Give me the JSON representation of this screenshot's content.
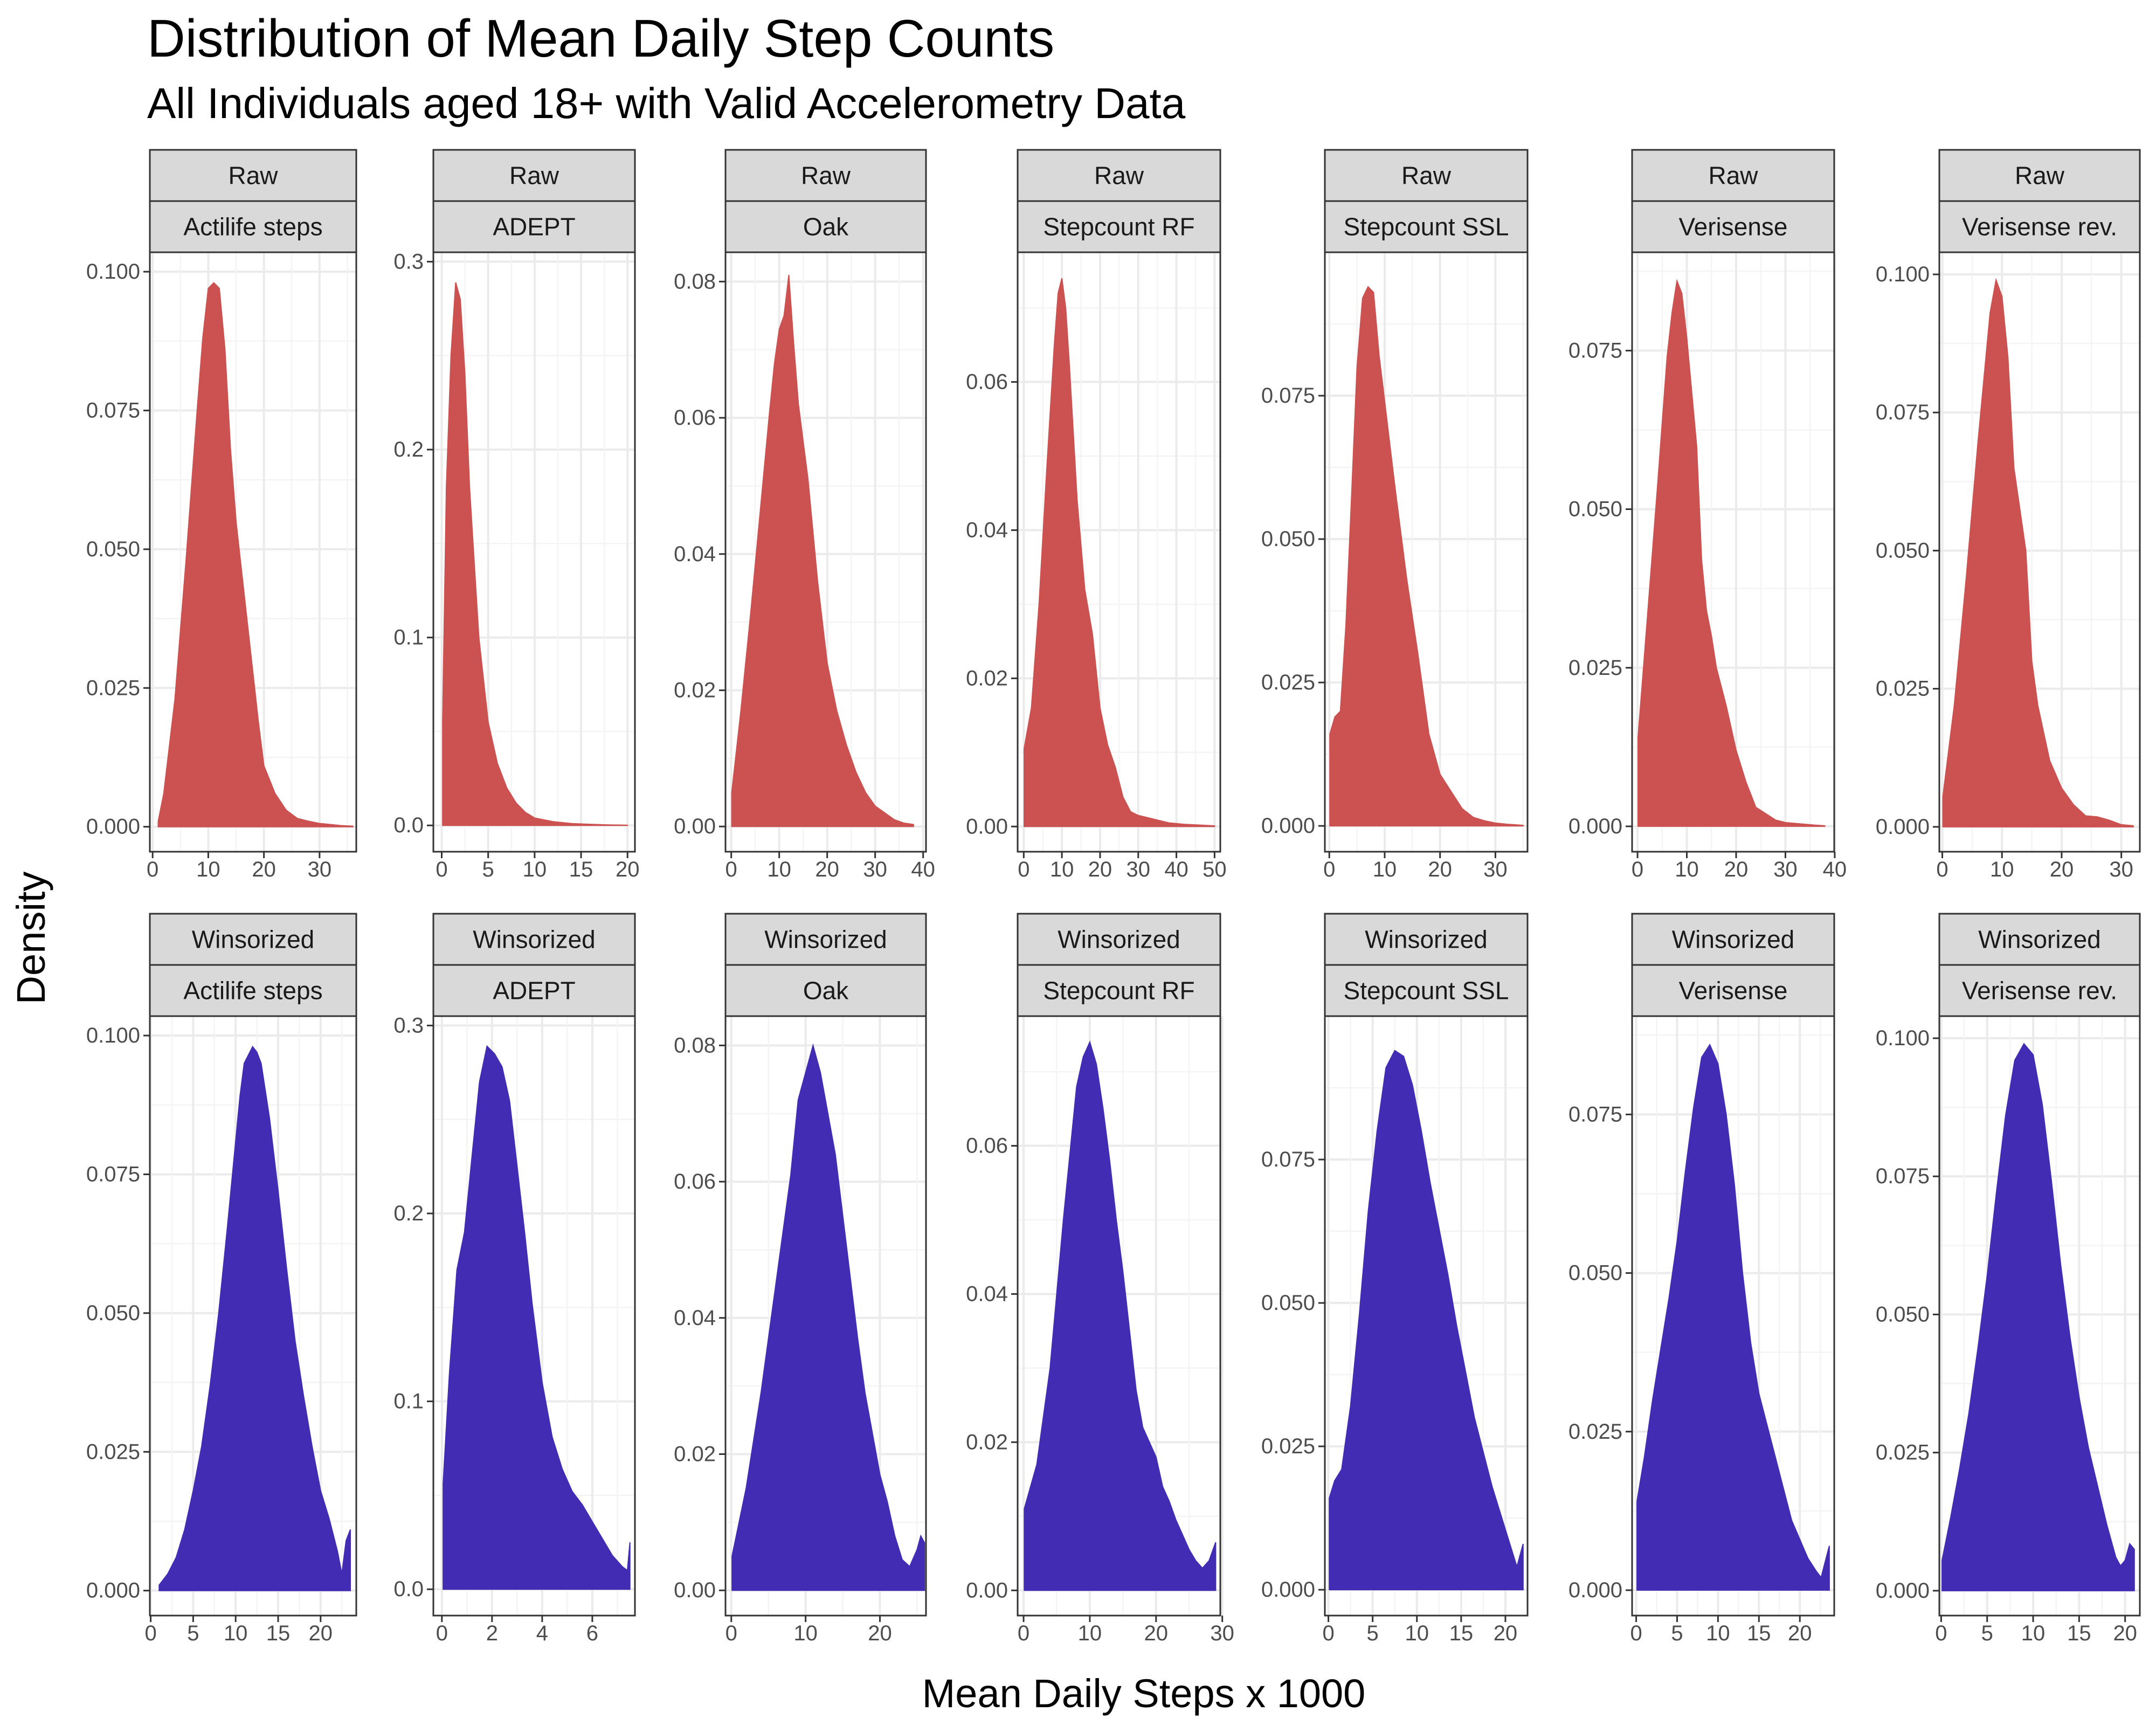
{
  "title": "Distribution of Mean Daily Step Counts",
  "subtitle": "All Individuals aged 18+ with Valid Accelerometry Data",
  "ylabel": "Density",
  "xlabel": "Mean Daily Steps x 1000",
  "colors": {
    "raw": "#cc5151",
    "winsorized": "#422cb3"
  },
  "chart_data": {
    "type": "area",
    "facet_rows": [
      "Raw",
      "Winsorized"
    ],
    "facet_cols": [
      "Actilife steps",
      "ADEPT",
      "Oak",
      "Stepcount RF",
      "Stepcount SSL",
      "Verisense",
      "Verisense rev."
    ],
    "panels": [
      {
        "row": "Raw",
        "method": "Actilife steps",
        "color_key": "raw",
        "xlim": [
          -0.5,
          36.6
        ],
        "xticks": [
          0,
          10,
          20,
          30
        ],
        "ylim": [
          -0.0045,
          0.1035
        ],
        "yticks": [
          "0.000",
          "0.025",
          "0.050",
          "0.075",
          "0.100"
        ],
        "x": [
          1,
          2,
          4,
          6,
          8,
          9,
          10,
          11,
          12,
          13,
          14,
          15,
          16,
          18,
          19,
          20,
          22,
          24,
          26,
          28,
          30,
          32,
          34,
          36
        ],
        "y": [
          0.001,
          0.006,
          0.023,
          0.048,
          0.075,
          0.088,
          0.097,
          0.098,
          0.097,
          0.086,
          0.068,
          0.055,
          0.046,
          0.028,
          0.019,
          0.011,
          0.006,
          0.003,
          0.0015,
          0.001,
          0.0006,
          0.0004,
          0.0002,
          0.0001
        ]
      },
      {
        "row": "Raw",
        "method": "ADEPT",
        "color_key": "raw",
        "xlim": [
          -0.9,
          20.8
        ],
        "xticks": [
          0,
          5,
          10,
          15,
          20
        ],
        "ylim": [
          -0.014,
          0.305
        ],
        "yticks": [
          "0.0",
          "0.1",
          "0.2",
          "0.3"
        ],
        "x": [
          0.1,
          0.5,
          1,
          1.5,
          2,
          2.5,
          3,
          3.5,
          4,
          5,
          6,
          7,
          8,
          9,
          10,
          12,
          14,
          16,
          18,
          20
        ],
        "y": [
          0.056,
          0.18,
          0.25,
          0.289,
          0.28,
          0.24,
          0.18,
          0.14,
          0.1,
          0.055,
          0.033,
          0.02,
          0.012,
          0.007,
          0.004,
          0.002,
          0.001,
          0.0006,
          0.0003,
          0.0001
        ]
      },
      {
        "row": "Raw",
        "method": "Oak",
        "color_key": "raw",
        "xlim": [
          -1.2,
          40.6
        ],
        "xticks": [
          0,
          10,
          20,
          30,
          40
        ],
        "ylim": [
          -0.0037,
          0.0843
        ],
        "yticks": [
          "0.00",
          "0.02",
          "0.04",
          "0.06",
          "0.08"
        ],
        "x": [
          0.1,
          2,
          4,
          6,
          8,
          9,
          10,
          11,
          12,
          13,
          14,
          16,
          18,
          20,
          22,
          24,
          26,
          28,
          30,
          32,
          34,
          36,
          38
        ],
        "y": [
          0.005,
          0.017,
          0.031,
          0.046,
          0.061,
          0.068,
          0.073,
          0.075,
          0.081,
          0.071,
          0.062,
          0.051,
          0.036,
          0.024,
          0.017,
          0.012,
          0.008,
          0.005,
          0.003,
          0.002,
          0.001,
          0.0005,
          0.0003
        ]
      },
      {
        "row": "Raw",
        "method": "Stepcount RF",
        "color_key": "raw",
        "xlim": [
          -1.6,
          51.5
        ],
        "xticks": [
          0,
          10,
          20,
          30,
          40,
          50
        ],
        "ylim": [
          -0.0034,
          0.0775
        ],
        "yticks": [
          "0.00",
          "0.02",
          "0.04",
          "0.06"
        ],
        "x": [
          0.1,
          2,
          4,
          6,
          8,
          9,
          10,
          11,
          12,
          14,
          16,
          18,
          20,
          22,
          24,
          26,
          28,
          30,
          34,
          38,
          42,
          46,
          50
        ],
        "y": [
          0.0105,
          0.016,
          0.03,
          0.048,
          0.065,
          0.072,
          0.074,
          0.07,
          0.062,
          0.044,
          0.032,
          0.026,
          0.016,
          0.011,
          0.008,
          0.004,
          0.002,
          0.0015,
          0.001,
          0.0005,
          0.0003,
          0.0002,
          0.0001
        ]
      },
      {
        "row": "Raw",
        "method": "Stepcount SSL",
        "color_key": "raw",
        "xlim": [
          -0.8,
          35.8
        ],
        "xticks": [
          0,
          10,
          20,
          30
        ],
        "ylim": [
          -0.0045,
          0.1
        ],
        "yticks": [
          "0.000",
          "0.025",
          "0.050",
          "0.075"
        ],
        "x": [
          0.1,
          1,
          2,
          3,
          4,
          5,
          6,
          7,
          8,
          9,
          10,
          11,
          12,
          14,
          16,
          18,
          20,
          22,
          24,
          26,
          28,
          30,
          32,
          35
        ],
        "y": [
          0.016,
          0.019,
          0.02,
          0.035,
          0.057,
          0.08,
          0.092,
          0.094,
          0.093,
          0.082,
          0.074,
          0.066,
          0.058,
          0.043,
          0.03,
          0.016,
          0.009,
          0.006,
          0.003,
          0.0015,
          0.0009,
          0.0005,
          0.0003,
          0.0001
        ]
      },
      {
        "row": "Raw",
        "method": "Verisense",
        "color_key": "raw",
        "xlim": [
          -1.1,
          39.9
        ],
        "xticks": [
          0,
          10,
          20,
          30,
          40
        ],
        "ylim": [
          -0.004,
          0.0905
        ],
        "yticks": [
          "0.000",
          "0.025",
          "0.050",
          "0.075"
        ],
        "x": [
          0.1,
          2,
          4,
          6,
          7,
          8,
          9,
          10,
          12,
          13,
          14,
          15,
          16,
          18,
          20,
          22,
          24,
          26,
          28,
          30,
          33,
          36,
          38
        ],
        "y": [
          0.014,
          0.033,
          0.053,
          0.074,
          0.081,
          0.086,
          0.084,
          0.077,
          0.06,
          0.042,
          0.034,
          0.03,
          0.025,
          0.019,
          0.012,
          0.007,
          0.003,
          0.002,
          0.001,
          0.0006,
          0.0004,
          0.0002,
          0.0001
        ]
      },
      {
        "row": "Raw",
        "method": "Verisense rev.",
        "color_key": "raw",
        "xlim": [
          -0.5,
          33.1
        ],
        "xticks": [
          0,
          10,
          20,
          30
        ],
        "ylim": [
          -0.0045,
          0.104
        ],
        "yticks": [
          "0.000",
          "0.025",
          "0.050",
          "0.075",
          "0.100"
        ],
        "x": [
          0.1,
          2,
          4,
          6,
          8,
          9,
          10,
          11,
          12,
          14,
          15,
          16,
          18,
          20,
          22,
          24,
          26,
          28,
          30,
          32
        ],
        "y": [
          0.0055,
          0.022,
          0.045,
          0.07,
          0.093,
          0.099,
          0.096,
          0.085,
          0.065,
          0.05,
          0.03,
          0.022,
          0.012,
          0.007,
          0.004,
          0.002,
          0.0018,
          0.0012,
          0.0004,
          0.0002
        ]
      },
      {
        "row": "Winsorized",
        "method": "Actilife steps",
        "color_key": "winsorized",
        "xlim": [
          -0.1,
          24.2
        ],
        "xticks": [
          0,
          5,
          10,
          15,
          20
        ],
        "ylim": [
          -0.0045,
          0.1035
        ],
        "yticks": [
          "0.000",
          "0.025",
          "0.050",
          "0.075",
          "0.100"
        ],
        "x": [
          1,
          2,
          3,
          4,
          5,
          6,
          7,
          8,
          9,
          10,
          10.5,
          11,
          12,
          12.5,
          13,
          14,
          15,
          16,
          17,
          18,
          19,
          20,
          21,
          22,
          22.5,
          23,
          23.5
        ],
        "y": [
          0.001,
          0.003,
          0.006,
          0.011,
          0.018,
          0.026,
          0.037,
          0.05,
          0.065,
          0.081,
          0.089,
          0.095,
          0.098,
          0.097,
          0.095,
          0.085,
          0.072,
          0.058,
          0.045,
          0.035,
          0.026,
          0.018,
          0.013,
          0.007,
          0.003,
          0.009,
          0.011
        ]
      },
      {
        "row": "Winsorized",
        "method": "ADEPT",
        "color_key": "winsorized",
        "xlim": [
          -0.34,
          7.7
        ],
        "xticks": [
          0,
          2,
          4,
          6
        ],
        "ylim": [
          -0.014,
          0.305
        ],
        "yticks": [
          "0.0",
          "0.1",
          "0.2",
          "0.3"
        ],
        "x": [
          0.05,
          0.3,
          0.6,
          0.9,
          1.2,
          1.5,
          1.8,
          2.1,
          2.4,
          2.7,
          3,
          3.3,
          3.6,
          4,
          4.4,
          4.8,
          5.2,
          5.6,
          6,
          6.4,
          6.8,
          7.2,
          7.4,
          7.5
        ],
        "y": [
          0.056,
          0.115,
          0.17,
          0.19,
          0.23,
          0.27,
          0.289,
          0.285,
          0.278,
          0.26,
          0.225,
          0.19,
          0.152,
          0.11,
          0.081,
          0.064,
          0.052,
          0.045,
          0.036,
          0.027,
          0.018,
          0.012,
          0.01,
          0.025
        ]
      },
      {
        "row": "Winsorized",
        "method": "Oak",
        "color_key": "winsorized",
        "xlim": [
          -0.78,
          26.2
        ],
        "xticks": [
          0,
          10,
          20
        ],
        "ylim": [
          -0.0037,
          0.0843
        ],
        "yticks": [
          "0.00",
          "0.02",
          "0.04",
          "0.06",
          "0.08"
        ],
        "x": [
          0.1,
          2,
          4,
          6,
          8,
          9,
          10,
          11,
          12,
          13,
          14,
          15,
          16,
          17,
          18,
          19,
          20,
          21,
          22,
          23,
          24,
          25,
          25.5,
          26
        ],
        "y": [
          0.005,
          0.015,
          0.029,
          0.045,
          0.061,
          0.072,
          0.076,
          0.08,
          0.076,
          0.07,
          0.064,
          0.055,
          0.046,
          0.037,
          0.029,
          0.023,
          0.017,
          0.013,
          0.008,
          0.0045,
          0.0035,
          0.006,
          0.008,
          0.007
        ]
      },
      {
        "row": "Winsorized",
        "method": "Stepcount RF",
        "color_key": "winsorized",
        "xlim": [
          -0.9,
          29.7
        ],
        "xticks": [
          0,
          10,
          20,
          30
        ],
        "ylim": [
          -0.0034,
          0.0775
        ],
        "yticks": [
          "0.00",
          "0.02",
          "0.04",
          "0.06"
        ],
        "x": [
          0.1,
          2,
          4,
          6,
          8,
          9,
          10,
          11,
          12,
          13,
          14,
          15,
          16,
          17,
          18,
          19,
          20,
          21,
          22,
          23,
          24,
          25,
          26,
          27,
          28,
          29
        ],
        "y": [
          0.011,
          0.017,
          0.03,
          0.05,
          0.068,
          0.072,
          0.074,
          0.071,
          0.065,
          0.058,
          0.05,
          0.043,
          0.035,
          0.027,
          0.022,
          0.02,
          0.018,
          0.014,
          0.012,
          0.0095,
          0.0075,
          0.0055,
          0.004,
          0.003,
          0.004,
          0.0065
        ]
      },
      {
        "row": "Winsorized",
        "method": "Stepcount SSL",
        "color_key": "winsorized",
        "xlim": [
          -0.4,
          22.5
        ],
        "xticks": [
          0,
          5,
          10,
          15,
          20
        ],
        "ylim": [
          -0.0045,
          0.1
        ],
        "yticks": [
          "0.000",
          "0.025",
          "0.050",
          "0.075"
        ],
        "x": [
          0.1,
          0.7,
          1.5,
          2.5,
          3.5,
          4.5,
          5.5,
          6.5,
          7.5,
          8.5,
          9.5,
          10.5,
          11.5,
          12.5,
          13.5,
          14.5,
          15.5,
          16.5,
          17.5,
          18.5,
          19.5,
          20.5,
          21.3,
          22
        ],
        "y": [
          0.016,
          0.019,
          0.021,
          0.032,
          0.048,
          0.066,
          0.08,
          0.091,
          0.094,
          0.093,
          0.088,
          0.08,
          0.071,
          0.063,
          0.055,
          0.046,
          0.038,
          0.03,
          0.024,
          0.018,
          0.013,
          0.008,
          0.004,
          0.008
        ]
      },
      {
        "row": "Winsorized",
        "method": "Verisense",
        "color_key": "winsorized",
        "xlim": [
          -0.5,
          24.2
        ],
        "xticks": [
          0,
          5,
          10,
          15,
          20
        ],
        "ylim": [
          -0.004,
          0.0905
        ],
        "yticks": [
          "0.000",
          "0.025",
          "0.050",
          "0.075"
        ],
        "x": [
          0.1,
          1,
          2,
          3,
          4,
          5,
          6,
          7,
          8,
          9,
          10,
          11,
          12,
          13,
          14,
          15,
          16,
          17,
          18,
          19,
          20,
          21,
          22,
          22.6,
          23.2,
          23.6
        ],
        "y": [
          0.014,
          0.021,
          0.03,
          0.038,
          0.046,
          0.055,
          0.066,
          0.076,
          0.084,
          0.086,
          0.083,
          0.075,
          0.064,
          0.05,
          0.039,
          0.031,
          0.026,
          0.021,
          0.016,
          0.011,
          0.008,
          0.005,
          0.003,
          0.002,
          0.005,
          0.007
        ]
      },
      {
        "row": "Winsorized",
        "method": "Verisense rev.",
        "color_key": "winsorized",
        "xlim": [
          -0.2,
          21.6
        ],
        "xticks": [
          0,
          5,
          10,
          15,
          20
        ],
        "ylim": [
          -0.0045,
          0.104
        ],
        "yticks": [
          "0.000",
          "0.025",
          "0.050",
          "0.075",
          "0.100"
        ],
        "x": [
          0.1,
          1,
          2,
          3,
          4,
          5,
          6,
          7,
          8,
          9,
          10,
          11,
          12,
          13,
          14,
          15,
          16,
          17,
          18,
          19,
          19.5,
          20,
          20.5,
          21
        ],
        "y": [
          0.0055,
          0.013,
          0.022,
          0.032,
          0.044,
          0.057,
          0.072,
          0.086,
          0.096,
          0.099,
          0.097,
          0.088,
          0.074,
          0.059,
          0.046,
          0.035,
          0.026,
          0.019,
          0.012,
          0.006,
          0.0045,
          0.0055,
          0.0085,
          0.0075
        ]
      }
    ]
  }
}
